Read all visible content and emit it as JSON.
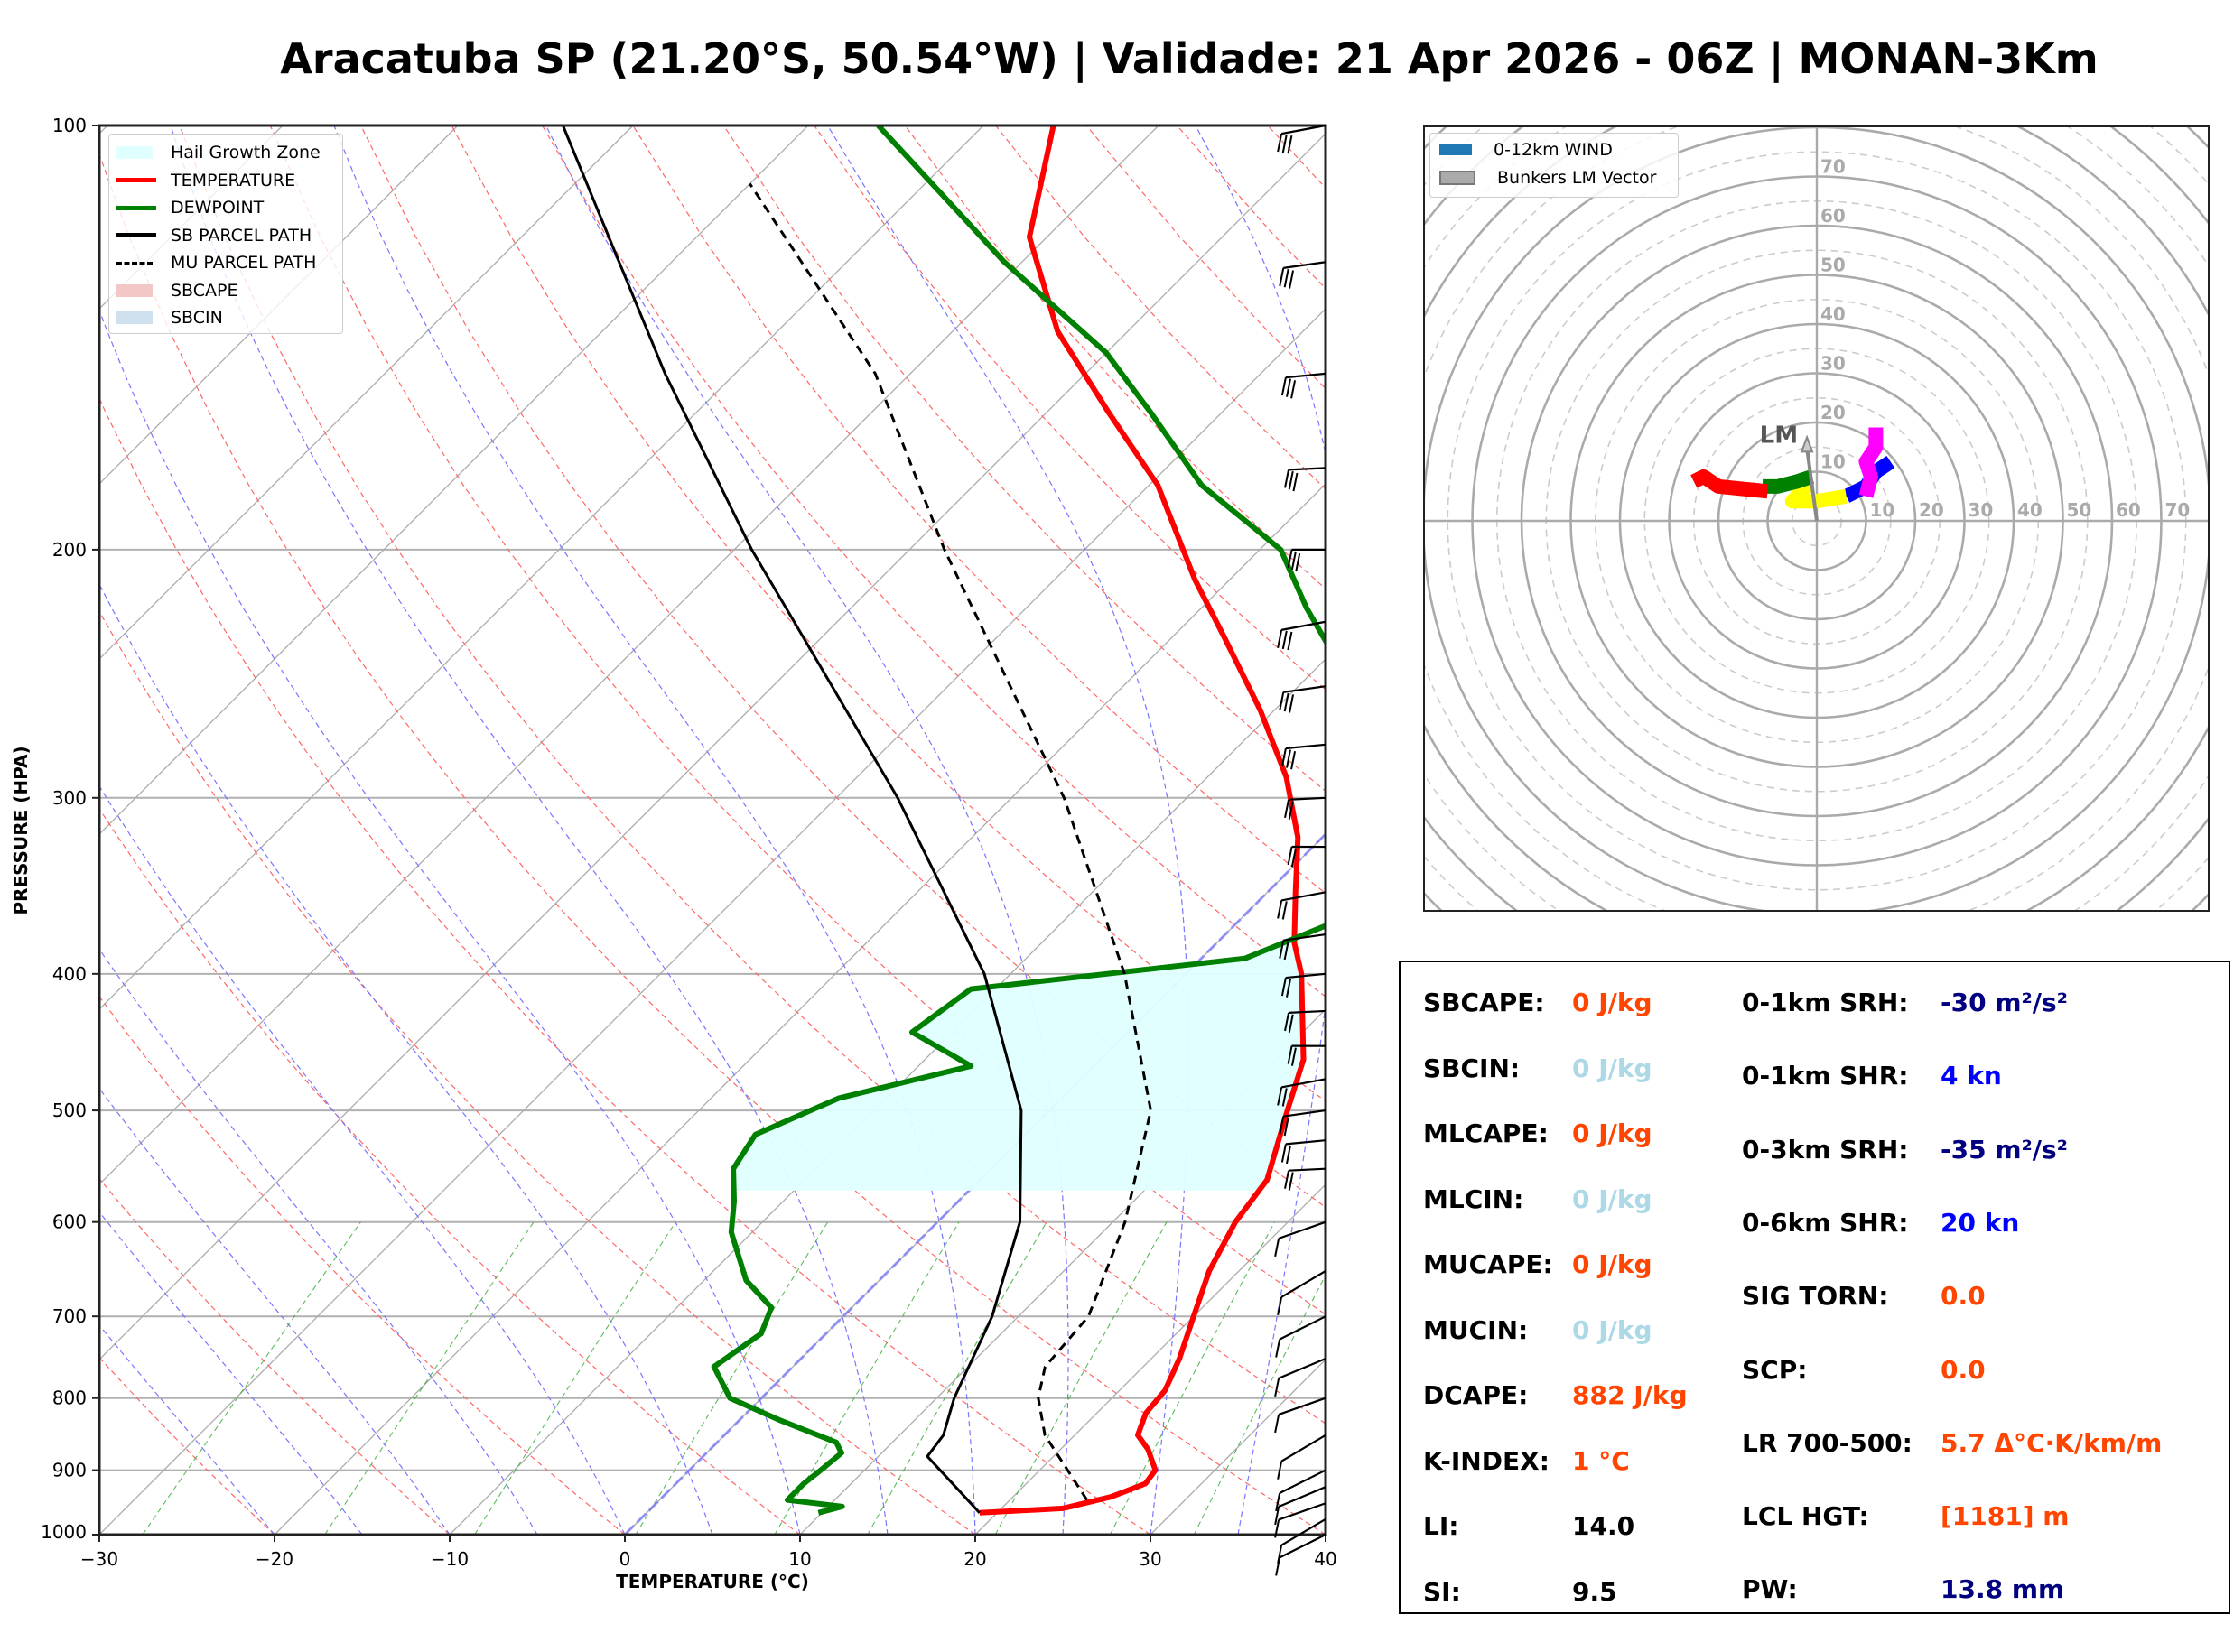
{
  "title": "Aracatuba SP (21.20°S, 50.54°W) | Validade: 21 Apr 2026 - 06Z | MONAN-3Km",
  "chart_data": [
    {
      "type": "skewt",
      "title": "",
      "xlabel": "TEMPERATURE (°C)",
      "ylabel": "PRESSURE (HPA)",
      "xlim": [
        -30,
        40
      ],
      "ylim": [
        1000,
        100
      ],
      "x_ticks": [
        "−30",
        "−20",
        "−10",
        "0",
        "10",
        "20",
        "30",
        "40"
      ],
      "x_tick_values": [
        -30,
        -20,
        -10,
        0,
        10,
        20,
        30,
        40
      ],
      "y_ticks": [
        "100",
        "200",
        "300",
        "400",
        "500",
        "600",
        "700",
        "800",
        "900",
        "1000"
      ],
      "y_tick_values": [
        100,
        200,
        300,
        400,
        500,
        600,
        700,
        800,
        900,
        1000
      ],
      "grid": true,
      "legend_position": "top-left",
      "legend": [
        {
          "label": "Hail Growth Zone",
          "color": "#e0ffff",
          "style": "patch"
        },
        {
          "label": "TEMPERATURE",
          "color": "#ff0000",
          "style": "line"
        },
        {
          "label": "DEWPOINT",
          "color": "#008000",
          "style": "line"
        },
        {
          "label": "SB PARCEL PATH",
          "color": "#000000",
          "style": "line"
        },
        {
          "label": "MU PARCEL PATH",
          "color": "#000000",
          "style": "dashed"
        },
        {
          "label": "SBCAPE",
          "color": "#f4c7c7",
          "style": "patch"
        },
        {
          "label": "SBCIN",
          "color": "#cfe0ee",
          "style": "patch"
        }
      ],
      "series": [
        {
          "name": "TEMPERATURE",
          "color": "#ff0000",
          "points": [
            [
              965,
              19
            ],
            [
              958,
              23.5
            ],
            [
              940,
              25.6
            ],
            [
              920,
              26.8
            ],
            [
              900,
              26.6
            ],
            [
              870,
              25
            ],
            [
              850,
              23.6
            ],
            [
              820,
              22.8
            ],
            [
              790,
              22.6
            ],
            [
              750,
              21.6
            ],
            [
              700,
              20
            ],
            [
              650,
              18.3
            ],
            [
              600,
              17
            ],
            [
              560,
              16.4
            ],
            [
              500,
              13.6
            ],
            [
              460,
              11.6
            ],
            [
              400,
              6.6
            ],
            [
              380,
              4.4
            ],
            [
              350,
              1.6
            ],
            [
              320,
              -1.4
            ],
            [
              290,
              -5.5
            ],
            [
              260,
              -10.8
            ],
            [
              230,
              -17.2
            ],
            [
              210,
              -22
            ],
            [
              180,
              -29.5
            ],
            [
              160,
              -36.4
            ],
            [
              140,
              -44
            ],
            [
              120,
              -51
            ],
            [
              100,
              -56
            ]
          ]
        },
        {
          "name": "DEWPOINT",
          "color": "#008000",
          "points": [
            [
              965,
              9.8
            ],
            [
              955,
              10.8
            ],
            [
              945,
              7.3
            ],
            [
              920,
              7.3
            ],
            [
              900,
              7.5
            ],
            [
              875,
              7.7
            ],
            [
              860,
              6.8
            ],
            [
              830,
              2.4
            ],
            [
              800,
              -1.8
            ],
            [
              760,
              -4.5
            ],
            [
              720,
              -3.7
            ],
            [
              690,
              -4.6
            ],
            [
              660,
              -7.6
            ],
            [
              610,
              -11.2
            ],
            [
              580,
              -12.8
            ],
            [
              550,
              -14.7
            ],
            [
              520,
              -15.4
            ],
            [
              490,
              -12.7
            ],
            [
              465,
              -7
            ],
            [
              440,
              -12.3
            ],
            [
              410,
              -11.4
            ],
            [
              390,
              2.5
            ],
            [
              360,
              6.6
            ],
            [
              330,
              5.4
            ],
            [
              300,
              2.5
            ],
            [
              270,
              -3.4
            ],
            [
              240,
              -9.2
            ],
            [
              220,
              -14
            ],
            [
              200,
              -18.8
            ],
            [
              180,
              -27
            ],
            [
              160,
              -34
            ],
            [
              145,
              -40
            ],
            [
              125,
              -51
            ],
            [
              100,
              -66
            ]
          ]
        },
        {
          "name": "SB PARCEL PATH",
          "color": "#000000",
          "dash": false,
          "points": [
            [
              965,
              19
            ],
            [
              880,
              12.8
            ],
            [
              850,
              12.5
            ],
            [
              800,
              11
            ],
            [
              700,
              8.5
            ],
            [
              600,
              4.7
            ],
            [
              500,
              -1.6
            ],
            [
              400,
              -11.5
            ],
            [
              300,
              -26.5
            ],
            [
              200,
              -49
            ],
            [
              150,
              -64
            ],
            [
              100,
              -84
            ]
          ]
        },
        {
          "name": "MU PARCEL PATH",
          "color": "#000000",
          "dash": true,
          "points": [
            [
              945,
              24.4
            ],
            [
              850,
              18.3
            ],
            [
              800,
              15.8
            ],
            [
              760,
              14.4
            ],
            [
              700,
              14
            ],
            [
              600,
              10.7
            ],
            [
              500,
              5.8
            ],
            [
              400,
              -3.5
            ],
            [
              300,
              -17
            ],
            [
              200,
              -38
            ],
            [
              150,
              -52
            ],
            [
              110,
              -70
            ]
          ]
        }
      ],
      "hail_growth_zone": {
        "pressure_top": 380,
        "pressure_bottom": 570
      },
      "wind_barbs_pressure": [
        100,
        125,
        150,
        175,
        200,
        225,
        250,
        275,
        300,
        325,
        350,
        375,
        400,
        425,
        450,
        475,
        500,
        525,
        550,
        600,
        650,
        700,
        750,
        800,
        850,
        900,
        925,
        950,
        975,
        1000
      ]
    },
    {
      "type": "hodograph",
      "legend_position": "top-left",
      "legend": [
        {
          "label": "0-12km WIND",
          "color": "#1f77b4"
        },
        {
          "label": "Bunkers LM Vector",
          "color": "#aaaaaa"
        }
      ],
      "ring_labels": [
        "10",
        "20",
        "30",
        "40",
        "50",
        "60",
        "70"
      ],
      "ring_values": [
        10,
        20,
        30,
        40,
        50,
        60,
        70
      ],
      "rmax": 80,
      "lm_label": "LM",
      "lm_vector": [
        -2,
        17
      ],
      "segments": [
        {
          "color": "#0000ff",
          "points": [
            [
              6,
              5
            ],
            [
              10,
              7
            ],
            [
              12,
              10
            ],
            [
              15,
              12
            ]
          ]
        },
        {
          "color": "#ff00ff",
          "points": [
            [
              10,
              5
            ],
            [
              11,
              9
            ],
            [
              10,
              12
            ],
            [
              12,
              15
            ],
            [
              12,
              19
            ]
          ]
        },
        {
          "color": "#ffff00",
          "points": [
            [
              6,
              5
            ],
            [
              0,
              4
            ],
            [
              -5,
              4
            ],
            [
              -2,
              7
            ],
            [
              -4,
              6
            ]
          ]
        },
        {
          "color": "#008000",
          "points": [
            [
              -1,
              9
            ],
            [
              -4,
              8
            ],
            [
              -8,
              7
            ],
            [
              -11,
              7
            ]
          ]
        },
        {
          "color": "#ff0000",
          "points": [
            [
              -10,
              6
            ],
            [
              -20,
              7
            ],
            [
              -23,
              9
            ],
            [
              -25,
              8
            ]
          ]
        }
      ]
    }
  ],
  "stats": {
    "left": [
      {
        "label": "SBCAPE:",
        "value": "0 J/kg",
        "color": "#ff4500"
      },
      {
        "label": "SBCIN:",
        "value": "0 J/kg",
        "color": "#add8e6"
      },
      {
        "label": "MLCAPE:",
        "value": "0 J/kg",
        "color": "#ff4500"
      },
      {
        "label": "MLCIN:",
        "value": "0 J/kg",
        "color": "#add8e6"
      },
      {
        "label": "MUCAPE:",
        "value": "0 J/kg",
        "color": "#ff4500"
      },
      {
        "label": "MUCIN:",
        "value": "0 J/kg",
        "color": "#add8e6"
      },
      {
        "label": "DCAPE:",
        "value": "882 J/kg",
        "color": "#ff4500"
      },
      {
        "label": "K-INDEX:",
        "value": "1 °C",
        "color": "#ff4500"
      },
      {
        "label": "LI:",
        "value": "14.0",
        "color": "#000000"
      },
      {
        "label": "SI:",
        "value": "9.5",
        "color": "#000000"
      }
    ],
    "right": [
      {
        "label": "0-1km SRH:",
        "value": "-30 m²/s²",
        "color": "#000080"
      },
      {
        "label": "0-1km SHR:",
        "value": "4 kn",
        "color": "#0000ff"
      },
      {
        "label": "0-3km SRH:",
        "value": "-35 m²/s²",
        "color": "#000080"
      },
      {
        "label": "0-6km SHR:",
        "value": "20 kn",
        "color": "#0000ff"
      },
      {
        "label": "SIG TORN:",
        "value": "0.0",
        "color": "#ff4500"
      },
      {
        "label": "SCP:",
        "value": "0.0",
        "color": "#ff4500"
      },
      {
        "label": "LR 700-500:",
        "value": "5.7 Δ°C·K/km/m",
        "color": "#ff4500"
      },
      {
        "label": "LCL HGT:",
        "value": "[1181] m",
        "color": "#ff4500"
      },
      {
        "label": "PW:",
        "value": "13.8 mm",
        "color": "#000080"
      }
    ]
  }
}
